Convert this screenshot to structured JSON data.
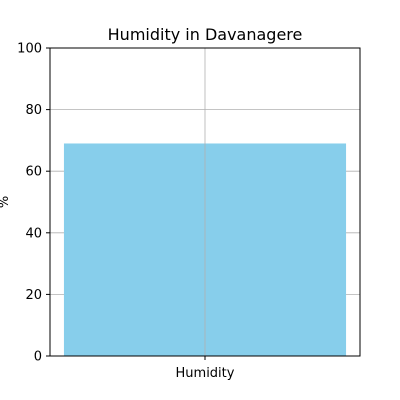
{
  "chart_data": {
    "type": "bar",
    "title": "Humidity in Davanagere",
    "xlabel": "",
    "ylabel": "%",
    "categories": [
      "Humidity"
    ],
    "values": [
      69
    ],
    "ylim": [
      0,
      100
    ],
    "yticks": [
      0,
      20,
      40,
      60,
      80,
      100
    ],
    "grid": true,
    "bar_color": "#87CEEB",
    "grid_color": "#b0b0b0"
  }
}
